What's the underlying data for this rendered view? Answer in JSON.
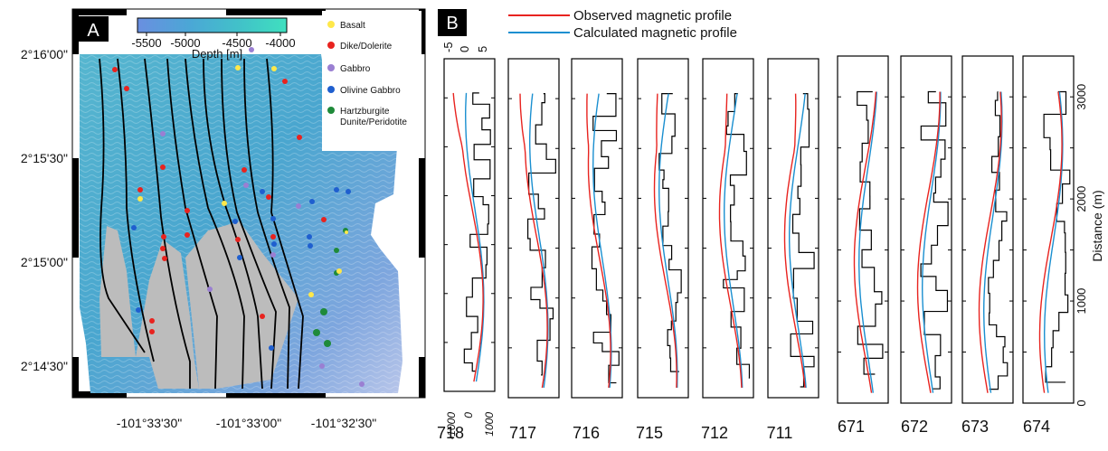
{
  "panel_a": {
    "label": "A",
    "colorbar": {
      "ticks": [
        "-5500",
        "-5000",
        "-4500",
        "-4000"
      ],
      "label": "Depth [m]",
      "colors": [
        "#6a8fe0",
        "#4ba7d6",
        "#41c3c8",
        "#3fe0bf"
      ]
    },
    "lat_labels": [
      "2°16'00\"",
      "2°15'30\"",
      "2°15'00\"",
      "2°14'30\""
    ],
    "lon_labels": [
      "-101°33'30\"",
      "-101°33'00\"",
      "-101°32'30\""
    ],
    "legend": [
      {
        "label": "Basalt",
        "color": "#ffe84a"
      },
      {
        "label": "Dike/Dolerite",
        "color": "#e8231f"
      },
      {
        "label": "Gabbro",
        "color": "#9a7fd2"
      },
      {
        "label": "Olivine Gabbro",
        "color": "#1f5fcf"
      },
      {
        "label": "Hartzburgite\nDunite/Peridotite",
        "color": "#1f8a3a"
      }
    ]
  },
  "panel_b": {
    "label": "B",
    "legend": [
      {
        "label": "Observed magnetic profile",
        "color": "#e8231f"
      },
      {
        "label": "Calculated magnetic profile",
        "color": "#1a8fd0"
      }
    ],
    "top_axis_ticks": [
      "-5",
      "0",
      "5"
    ],
    "bottom_axis_ticks": [
      "-1000",
      "0",
      "1000"
    ],
    "y_axis": {
      "label": "Distance (m)",
      "ticks": [
        "0",
        "1000",
        "2000",
        "3000"
      ]
    }
  },
  "chart_data": {
    "type": "line",
    "title": "",
    "ylabel": "Distance (m)",
    "ylim": [
      0,
      3400
    ],
    "profiles": [
      "718",
      "717",
      "716",
      "715",
      "712",
      "711",
      "671",
      "672",
      "673",
      "674"
    ],
    "series": [
      {
        "name": "Observed magnetic profile",
        "color": "#e8231f"
      },
      {
        "name": "Calculated magnetic profile",
        "color": "#1a8fd0"
      }
    ]
  }
}
